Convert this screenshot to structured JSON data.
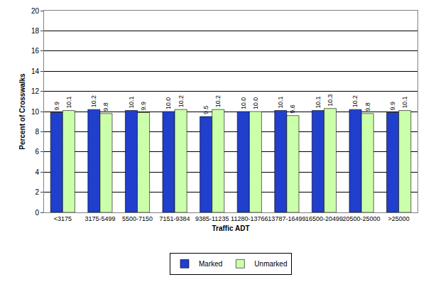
{
  "chart_data": {
    "type": "bar",
    "x_label": "Traffic ADT",
    "y_label": "Percent of Crosswalks",
    "categories": [
      "<3175",
      "3175-5499",
      "5500-7150",
      "7151-9384",
      "9385-11235",
      "11280-13766",
      "13787-16499",
      "16500-20499",
      "20500-25000",
      ">25000"
    ],
    "series": [
      {
        "name": "Marked",
        "color": "#1f3fcc",
        "values": [
          9.9,
          10.2,
          10.1,
          10.0,
          9.5,
          10.0,
          10.1,
          10.1,
          10.2,
          9.9
        ],
        "value_labels": [
          "9.9",
          "10.2",
          "10.1",
          "10.0",
          "9.5",
          "10.0",
          "10.1",
          "10.1",
          "10.2",
          "9.9"
        ]
      },
      {
        "name": "Unmarked",
        "color": "#ccffaa",
        "values": [
          10.1,
          9.8,
          9.9,
          10.2,
          10.2,
          10.0,
          9.6,
          10.3,
          9.8,
          10.1
        ],
        "value_labels": [
          "10.1",
          "9.8",
          "9.9",
          "10.2",
          "10.2",
          "10.0",
          "9.6",
          "10.3",
          "9.8",
          "10.1"
        ]
      }
    ],
    "ylim": [
      0,
      20
    ],
    "yticks": [
      0,
      2,
      4,
      6,
      8,
      10,
      12,
      14,
      16,
      18,
      20
    ],
    "grid": true,
    "legend": "bottom",
    "data_labels": true
  }
}
